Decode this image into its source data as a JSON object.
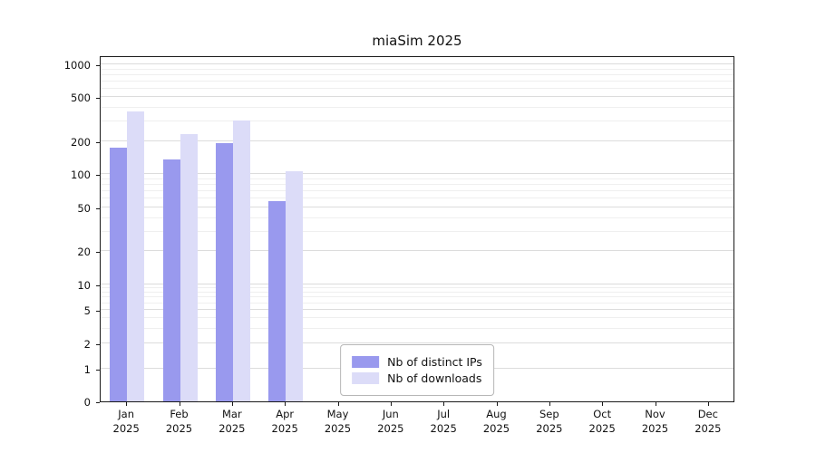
{
  "chart_data": {
    "type": "bar",
    "title": "miaSim 2025",
    "scale": "symlog",
    "grid": true,
    "legend_position": "lower center",
    "categories": [
      "Jan",
      "Feb",
      "Mar",
      "Apr",
      "May",
      "Jun",
      "Jul",
      "Aug",
      "Sep",
      "Oct",
      "Nov",
      "Dec"
    ],
    "year": "2025",
    "yticks": [
      0,
      1,
      2,
      5,
      10,
      20,
      50,
      100,
      200,
      500,
      1000
    ],
    "minor_yticks": [
      3,
      4,
      6,
      7,
      8,
      9,
      30,
      40,
      60,
      70,
      80,
      90,
      300,
      400,
      600,
      700,
      800,
      900
    ],
    "ylim": [
      0,
      1100
    ],
    "series": [
      {
        "name": "Nb of distinct IPs",
        "color": "#9999ee",
        "values": [
          175,
          135,
          190,
          57,
          0,
          0,
          0,
          0,
          0,
          0,
          0,
          0
        ]
      },
      {
        "name": "Nb of downloads",
        "color": "#dcdcf8",
        "values": [
          370,
          230,
          310,
          105,
          0,
          0,
          0,
          0,
          0,
          0,
          0,
          0
        ]
      }
    ]
  }
}
